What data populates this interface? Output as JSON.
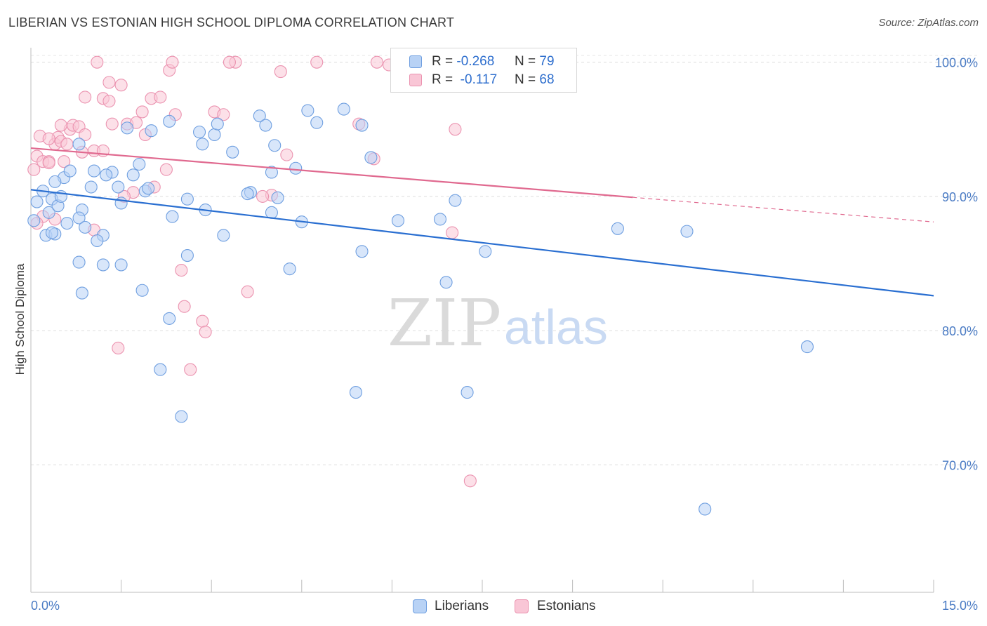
{
  "title": "LIBERIAN VS ESTONIAN HIGH SCHOOL DIPLOMA CORRELATION CHART",
  "source": "Source: ZipAtlas.com",
  "colors": {
    "blue_fill": "#b8d2f5",
    "blue_stroke": "#6f9fe0",
    "blue_line": "#2a6fd1",
    "pink_fill": "#f9c6d6",
    "pink_stroke": "#eb93b0",
    "pink_line": "#e0698f",
    "axis_text": "#4a7bc4",
    "grid": "#dddddd"
  },
  "legend_top": {
    "rows": [
      {
        "swatch": "blue",
        "r_label": "R =",
        "r_value": "-0.268",
        "n_label": "N =",
        "n_value": "79"
      },
      {
        "swatch": "pink",
        "r_label": "R =",
        "r_value": "-0.117",
        "n_label": "N =",
        "n_value": "68"
      }
    ]
  },
  "legend_bottom": [
    {
      "swatch": "blue",
      "label": "Liberians"
    },
    {
      "swatch": "pink",
      "label": "Estonians"
    }
  ],
  "watermark": {
    "part1": "ZIP",
    "part2": "atlas"
  },
  "chart_data": {
    "type": "scatter",
    "title": "LIBERIAN VS ESTONIAN HIGH SCHOOL DIPLOMA CORRELATION CHART",
    "xlabel": "",
    "ylabel": "High School Diploma",
    "xlim": [
      0,
      15
    ],
    "ylim": [
      60.5,
      101.5
    ],
    "x_tick_labels": [
      "0.0%",
      "15.0%"
    ],
    "y_ticks": [
      70,
      80,
      90,
      100
    ],
    "y_tick_labels": [
      "70.0%",
      "80.0%",
      "90.0%",
      "100.0%"
    ],
    "grid": "horizontal dashed",
    "legend_position": "top-center",
    "series": [
      {
        "name": "Liberians",
        "color": "blue",
        "trend": {
          "x": [
            0,
            15
          ],
          "y": [
            90.5,
            82.6
          ],
          "dashed_from": null
        },
        "points": [
          [
            0.05,
            88.2
          ],
          [
            0.1,
            89.6
          ],
          [
            0.2,
            90.4
          ],
          [
            0.25,
            87.1
          ],
          [
            0.3,
            88.8
          ],
          [
            0.35,
            89.8
          ],
          [
            0.4,
            87.2
          ],
          [
            0.45,
            89.3
          ],
          [
            0.5,
            90.0
          ],
          [
            0.55,
            91.4
          ],
          [
            0.65,
            91.9
          ],
          [
            0.8,
            93.9
          ],
          [
            0.85,
            89.0
          ],
          [
            1.05,
            91.9
          ],
          [
            1.2,
            87.1
          ],
          [
            1.35,
            91.8
          ],
          [
            1.5,
            89.5
          ],
          [
            1.6,
            95.1
          ],
          [
            1.7,
            91.6
          ],
          [
            1.8,
            92.4
          ],
          [
            1.9,
            90.4
          ],
          [
            2.0,
            94.9
          ],
          [
            2.3,
            95.6
          ],
          [
            2.35,
            88.5
          ],
          [
            2.6,
            89.8
          ],
          [
            2.8,
            94.8
          ],
          [
            2.9,
            89.0
          ],
          [
            3.05,
            94.6
          ],
          [
            3.1,
            95.4
          ],
          [
            3.2,
            87.1
          ],
          [
            3.35,
            93.3
          ],
          [
            3.65,
            90.3
          ],
          [
            3.8,
            96.0
          ],
          [
            3.9,
            95.3
          ],
          [
            4.0,
            91.8
          ],
          [
            4.05,
            93.8
          ],
          [
            4.1,
            89.9
          ],
          [
            4.4,
            92.1
          ],
          [
            4.5,
            88.1
          ],
          [
            4.6,
            96.4
          ],
          [
            4.75,
            95.5
          ],
          [
            5.2,
            96.5
          ],
          [
            5.5,
            95.3
          ],
          [
            5.65,
            92.9
          ],
          [
            6.1,
            88.2
          ],
          [
            6.8,
            88.3
          ],
          [
            7.05,
            89.7
          ],
          [
            7.55,
            85.9
          ],
          [
            9.75,
            87.6
          ],
          [
            10.9,
            87.4
          ],
          [
            0.8,
            88.4
          ],
          [
            0.9,
            87.7
          ],
          [
            1.1,
            86.7
          ],
          [
            0.8,
            85.1
          ],
          [
            1.2,
            84.9
          ],
          [
            1.5,
            84.9
          ],
          [
            0.85,
            82.8
          ],
          [
            1.85,
            83.0
          ],
          [
            2.6,
            85.6
          ],
          [
            2.3,
            80.9
          ],
          [
            4.3,
            84.6
          ],
          [
            5.5,
            85.9
          ],
          [
            6.9,
            83.6
          ],
          [
            2.15,
            77.1
          ],
          [
            2.5,
            73.6
          ],
          [
            5.4,
            75.4
          ],
          [
            7.25,
            75.4
          ],
          [
            12.9,
            78.8
          ],
          [
            11.2,
            66.7
          ],
          [
            1.0,
            90.7
          ],
          [
            1.45,
            90.7
          ],
          [
            1.95,
            90.6
          ],
          [
            3.6,
            90.2
          ],
          [
            4.0,
            88.8
          ],
          [
            2.85,
            93.9
          ],
          [
            0.6,
            88.0
          ],
          [
            0.4,
            91.1
          ],
          [
            1.25,
            91.6
          ],
          [
            0.35,
            87.3
          ]
        ]
      },
      {
        "name": "Estonians",
        "color": "pink",
        "trend": {
          "x": [
            0,
            15
          ],
          "y": [
            93.6,
            88.1
          ],
          "dashed_from": 10.0
        },
        "points": [
          [
            0.05,
            92.0
          ],
          [
            0.1,
            93.0
          ],
          [
            0.15,
            94.5
          ],
          [
            0.2,
            92.6
          ],
          [
            0.3,
            92.6
          ],
          [
            0.4,
            93.9
          ],
          [
            0.45,
            94.4
          ],
          [
            0.5,
            94.1
          ],
          [
            0.55,
            92.6
          ],
          [
            0.65,
            95.0
          ],
          [
            0.7,
            95.3
          ],
          [
            0.8,
            95.2
          ],
          [
            0.85,
            93.3
          ],
          [
            0.9,
            97.4
          ],
          [
            1.05,
            93.4
          ],
          [
            1.2,
            97.3
          ],
          [
            1.35,
            95.4
          ],
          [
            1.6,
            95.4
          ],
          [
            1.85,
            96.3
          ],
          [
            2.0,
            97.3
          ],
          [
            2.15,
            97.4
          ],
          [
            2.3,
            99.4
          ],
          [
            2.4,
            96.1
          ],
          [
            3.05,
            96.3
          ],
          [
            3.2,
            96.1
          ],
          [
            3.4,
            100.0
          ],
          [
            4.15,
            99.3
          ],
          [
            4.75,
            100.0
          ],
          [
            5.75,
            100.0
          ],
          [
            5.95,
            99.8
          ],
          [
            6.4,
            99.8
          ],
          [
            1.1,
            100.0
          ],
          [
            2.35,
            100.0
          ],
          [
            3.3,
            100.0
          ],
          [
            1.3,
            98.5
          ],
          [
            1.5,
            98.3
          ],
          [
            0.3,
            94.3
          ],
          [
            0.6,
            93.9
          ],
          [
            0.9,
            94.6
          ],
          [
            1.2,
            93.4
          ],
          [
            1.9,
            94.6
          ],
          [
            2.25,
            92.0
          ],
          [
            2.05,
            90.7
          ],
          [
            1.7,
            90.3
          ],
          [
            1.55,
            90.0
          ],
          [
            1.05,
            87.5
          ],
          [
            0.2,
            88.5
          ],
          [
            0.4,
            88.3
          ],
          [
            4.25,
            93.1
          ],
          [
            5.7,
            92.8
          ],
          [
            5.45,
            95.4
          ],
          [
            4.0,
            90.1
          ],
          [
            3.85,
            90.0
          ],
          [
            7.05,
            95.0
          ],
          [
            7.0,
            87.3
          ],
          [
            2.5,
            84.5
          ],
          [
            3.6,
            82.9
          ],
          [
            2.55,
            81.8
          ],
          [
            2.85,
            80.7
          ],
          [
            2.9,
            79.9
          ],
          [
            1.45,
            78.7
          ],
          [
            2.65,
            77.1
          ],
          [
            7.3,
            68.8
          ],
          [
            0.1,
            88.0
          ],
          [
            0.5,
            95.3
          ],
          [
            1.75,
            95.5
          ],
          [
            1.3,
            97.1
          ],
          [
            0.3,
            92.5
          ]
        ]
      }
    ]
  }
}
